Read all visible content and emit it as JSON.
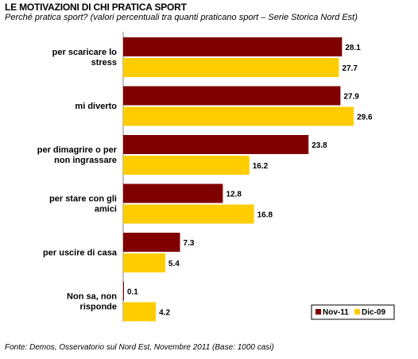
{
  "header": {
    "title": "LE MOTIVAZIONI DI CHI PRATICA SPORT",
    "subtitle": "Perché pratica sport? (valori percentuali tra quanti praticano sport – Serie Storica Nord Est)"
  },
  "footer": {
    "source": "Fonte: Demos, Osservatorio sul Nord Est, Novembre  2011 (Base: 1000 casi)"
  },
  "chart_data": {
    "type": "bar",
    "orientation": "horizontal",
    "categories": [
      [
        "per scaricare lo",
        "stress"
      ],
      [
        "mi diverto"
      ],
      [
        "per dimagrire o per",
        "non ingrassare"
      ],
      [
        "per stare con gli",
        "amici"
      ],
      [
        "per uscire di casa"
      ],
      [
        "Non sa, non",
        "risponde"
      ]
    ],
    "series": [
      {
        "name": "Nov-11",
        "color": "#800000",
        "values": [
          28.1,
          27.9,
          23.8,
          12.8,
          7.3,
          0.1
        ],
        "labels": [
          "28.1",
          "27.9",
          "23.8",
          "12.8",
          "7.3",
          "0.1"
        ]
      },
      {
        "name": "Dic-09",
        "color": "#FFCC00",
        "values": [
          27.7,
          29.6,
          16.2,
          16.8,
          5.4,
          4.2
        ],
        "labels": [
          "27.7",
          "29.6",
          "16.2",
          "16.8",
          "5.4",
          "4.2"
        ]
      }
    ],
    "legend_position": "bottom-right",
    "grid": false
  }
}
